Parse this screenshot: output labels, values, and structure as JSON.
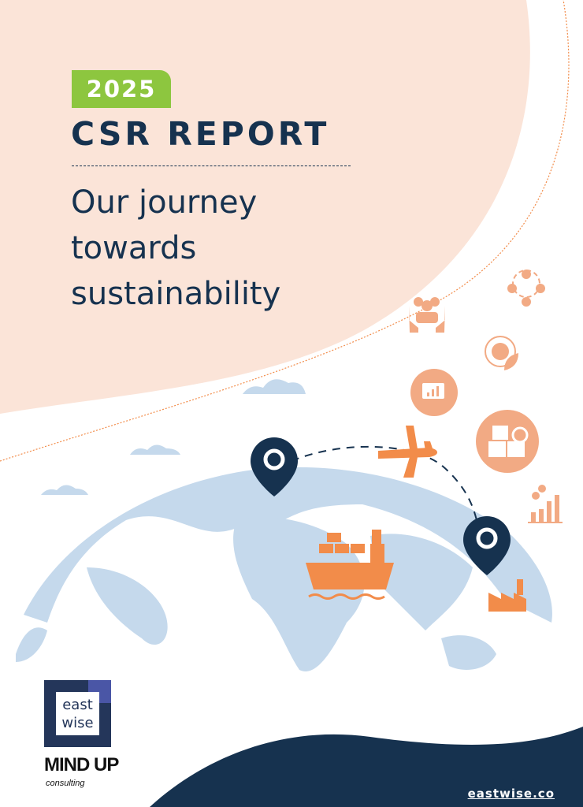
{
  "cover": {
    "year": "2025",
    "title": "CSR REPORT",
    "subtitle": "Our journey towards sustainability",
    "url": "eastwise.co"
  },
  "logos": {
    "eastwise": "east wise",
    "mindup": "MIND UP",
    "mindup_sub": "consulting"
  },
  "icons": [
    "community-hands-icon",
    "people-network-icon",
    "globe-leaf-icon",
    "chat-chart-icon",
    "package-inspection-icon",
    "growth-team-icon",
    "airplane-icon",
    "cargo-ship-icon",
    "factory-icon",
    "location-pin-icon"
  ],
  "colors": {
    "navy": "#16324f",
    "green": "#8dc63f",
    "peach": "#fbe4d8",
    "orange": "#f28c4a",
    "light_orange": "#f2aa84",
    "map_blue": "#c5d9ec"
  }
}
